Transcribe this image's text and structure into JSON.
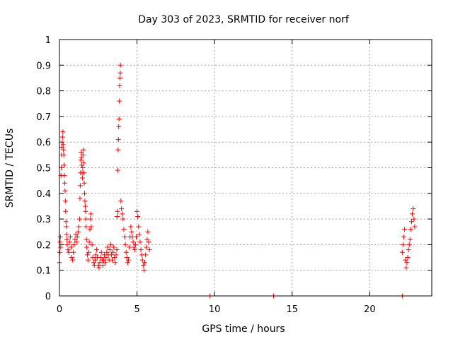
{
  "chart_data": {
    "type": "scatter",
    "title": "Day 303 of 2023, SRMTID for receiver norf",
    "xlabel": "GPS time / hours",
    "ylabel": "SRMTID / TECUs",
    "xlim": [
      0,
      24
    ],
    "ylim": [
      0,
      1
    ],
    "xticks": [
      0,
      5,
      10,
      15,
      20
    ],
    "xtick_labels": [
      "0",
      "5",
      "10",
      "15",
      "20"
    ],
    "yticks": [
      0,
      0.1,
      0.2,
      0.3,
      0.4,
      0.5,
      0.6,
      0.7,
      0.8,
      0.9,
      1
    ],
    "ytick_labels": [
      "0",
      "0.1",
      "0.2",
      "0.3",
      "0.4",
      "0.5",
      "0.6",
      "0.7",
      "0.8",
      "0.9",
      "1"
    ],
    "grid": true,
    "marker": "+",
    "color": "#ff0000",
    "series": [
      {
        "name": "SRMTID",
        "points": [
          [
            0.0,
            0.13
          ],
          [
            0.02,
            0.17
          ],
          [
            0.04,
            0.21
          ],
          [
            0.06,
            0.23
          ],
          [
            0.08,
            0.19
          ],
          [
            0.1,
            0.47
          ],
          [
            0.12,
            0.5
          ],
          [
            0.14,
            0.55
          ],
          [
            0.16,
            0.58
          ],
          [
            0.18,
            0.6
          ],
          [
            0.2,
            0.62
          ],
          [
            0.22,
            0.64
          ],
          [
            0.24,
            0.59
          ],
          [
            0.26,
            0.57
          ],
          [
            0.28,
            0.55
          ],
          [
            0.3,
            0.51
          ],
          [
            0.32,
            0.47
          ],
          [
            0.34,
            0.44
          ],
          [
            0.36,
            0.41
          ],
          [
            0.38,
            0.37
          ],
          [
            0.4,
            0.33
          ],
          [
            0.42,
            0.29
          ],
          [
            0.44,
            0.27
          ],
          [
            0.46,
            0.24
          ],
          [
            0.48,
            0.22
          ],
          [
            0.5,
            0.2
          ],
          [
            0.55,
            0.18
          ],
          [
            0.6,
            0.17
          ],
          [
            0.65,
            0.21
          ],
          [
            0.7,
            0.23
          ],
          [
            0.75,
            0.19
          ],
          [
            0.8,
            0.15
          ],
          [
            0.85,
            0.14
          ],
          [
            0.9,
            0.17
          ],
          [
            0.95,
            0.2
          ],
          [
            1.0,
            0.22
          ],
          [
            1.05,
            0.24
          ],
          [
            1.1,
            0.21
          ],
          [
            1.15,
            0.23
          ],
          [
            1.2,
            0.25
          ],
          [
            1.25,
            0.27
          ],
          [
            1.3,
            0.3
          ],
          [
            1.32,
            0.38
          ],
          [
            1.34,
            0.43
          ],
          [
            1.36,
            0.48
          ],
          [
            1.38,
            0.53
          ],
          [
            1.4,
            0.56
          ],
          [
            1.42,
            0.54
          ],
          [
            1.44,
            0.51
          ],
          [
            1.46,
            0.48
          ],
          [
            1.48,
            0.46
          ],
          [
            1.5,
            0.5
          ],
          [
            1.52,
            0.55
          ],
          [
            1.54,
            0.57
          ],
          [
            1.56,
            0.52
          ],
          [
            1.58,
            0.48
          ],
          [
            1.6,
            0.44
          ],
          [
            1.62,
            0.4
          ],
          [
            1.64,
            0.37
          ],
          [
            1.66,
            0.35
          ],
          [
            1.68,
            0.33
          ],
          [
            1.7,
            0.3
          ],
          [
            1.72,
            0.27
          ],
          [
            1.74,
            0.22
          ],
          [
            1.76,
            0.19
          ],
          [
            1.8,
            0.16
          ],
          [
            1.84,
            0.14
          ],
          [
            1.88,
            0.17
          ],
          [
            1.92,
            0.21
          ],
          [
            1.96,
            0.26
          ],
          [
            2.0,
            0.3
          ],
          [
            2.02,
            0.32
          ],
          [
            2.05,
            0.27
          ],
          [
            2.1,
            0.2
          ],
          [
            2.15,
            0.15
          ],
          [
            2.2,
            0.13
          ],
          [
            2.25,
            0.12
          ],
          [
            2.3,
            0.14
          ],
          [
            2.35,
            0.16
          ],
          [
            2.4,
            0.18
          ],
          [
            2.45,
            0.15
          ],
          [
            2.5,
            0.12
          ],
          [
            2.55,
            0.11
          ],
          [
            2.6,
            0.13
          ],
          [
            2.65,
            0.15
          ],
          [
            2.7,
            0.17
          ],
          [
            2.75,
            0.14
          ],
          [
            2.8,
            0.12
          ],
          [
            2.85,
            0.14
          ],
          [
            2.9,
            0.16
          ],
          [
            2.95,
            0.13
          ],
          [
            3.0,
            0.15
          ],
          [
            3.05,
            0.17
          ],
          [
            3.1,
            0.19
          ],
          [
            3.15,
            0.16
          ],
          [
            3.2,
            0.14
          ],
          [
            3.25,
            0.18
          ],
          [
            3.3,
            0.2
          ],
          [
            3.35,
            0.16
          ],
          [
            3.4,
            0.14
          ],
          [
            3.45,
            0.17
          ],
          [
            3.5,
            0.19
          ],
          [
            3.55,
            0.15
          ],
          [
            3.6,
            0.13
          ],
          [
            3.65,
            0.16
          ],
          [
            3.7,
            0.18
          ],
          [
            3.72,
            0.31
          ],
          [
            3.74,
            0.33
          ],
          [
            3.76,
            0.49
          ],
          [
            3.78,
            0.57
          ],
          [
            3.8,
            0.61
          ],
          [
            3.82,
            0.66
          ],
          [
            3.84,
            0.69
          ],
          [
            3.86,
            0.76
          ],
          [
            3.88,
            0.82
          ],
          [
            3.9,
            0.85
          ],
          [
            3.92,
            0.87
          ],
          [
            3.93,
            0.9
          ],
          [
            3.96,
            0.37
          ],
          [
            4.0,
            0.34
          ],
          [
            4.05,
            0.32
          ],
          [
            4.1,
            0.3
          ],
          [
            4.15,
            0.26
          ],
          [
            4.2,
            0.23
          ],
          [
            4.25,
            0.2
          ],
          [
            4.3,
            0.17
          ],
          [
            4.35,
            0.15
          ],
          [
            4.4,
            0.13
          ],
          [
            4.45,
            0.14
          ],
          [
            4.5,
            0.19
          ],
          [
            4.55,
            0.23
          ],
          [
            4.6,
            0.27
          ],
          [
            4.65,
            0.25
          ],
          [
            4.7,
            0.23
          ],
          [
            4.75,
            0.21
          ],
          [
            4.8,
            0.19
          ],
          [
            4.85,
            0.18
          ],
          [
            4.9,
            0.2
          ],
          [
            4.95,
            0.23
          ],
          [
            5.0,
            0.33
          ],
          [
            5.05,
            0.31
          ],
          [
            5.1,
            0.27
          ],
          [
            5.15,
            0.24
          ],
          [
            5.2,
            0.21
          ],
          [
            5.25,
            0.18
          ],
          [
            5.3,
            0.16
          ],
          [
            5.35,
            0.14
          ],
          [
            5.4,
            0.12
          ],
          [
            5.45,
            0.1
          ],
          [
            5.5,
            0.13
          ],
          [
            5.55,
            0.16
          ],
          [
            5.6,
            0.19
          ],
          [
            5.65,
            0.22
          ],
          [
            5.7,
            0.25
          ],
          [
            5.75,
            0.21
          ],
          [
            5.8,
            0.18
          ],
          [
            9.7,
            0.0
          ],
          [
            13.8,
            0.0
          ],
          [
            22.1,
            0.0
          ],
          [
            22.1,
            0.17
          ],
          [
            22.15,
            0.2
          ],
          [
            22.2,
            0.23
          ],
          [
            22.25,
            0.26
          ],
          [
            22.3,
            0.14
          ],
          [
            22.35,
            0.11
          ],
          [
            22.4,
            0.13
          ],
          [
            22.45,
            0.15
          ],
          [
            22.5,
            0.18
          ],
          [
            22.55,
            0.2
          ],
          [
            22.6,
            0.22
          ],
          [
            22.65,
            0.26
          ],
          [
            22.7,
            0.29
          ],
          [
            22.75,
            0.32
          ],
          [
            22.8,
            0.34
          ],
          [
            22.85,
            0.3
          ],
          [
            22.9,
            0.27
          ]
        ]
      }
    ]
  }
}
